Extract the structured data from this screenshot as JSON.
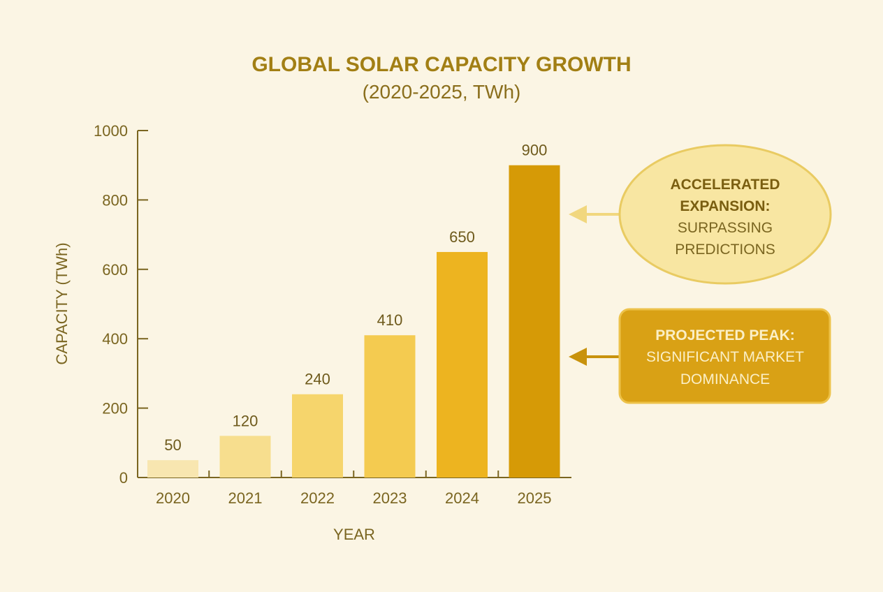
{
  "chart_data": {
    "type": "bar",
    "title": "GLOBAL SOLAR CAPACITY GROWTH",
    "subtitle": "(2020-2025, TWh)",
    "xlabel": "YEAR",
    "ylabel": "CAPACITY (TWh)",
    "ylim": [
      0,
      1000
    ],
    "yticks": [
      "0",
      "200",
      "400",
      "600",
      "800",
      "1000"
    ],
    "categories": [
      "2020",
      "2021",
      "2022",
      "2023",
      "2024",
      "2025"
    ],
    "values": [
      50,
      120,
      240,
      410,
      650,
      900
    ],
    "data_labels": [
      "50",
      "120",
      "240",
      "410",
      "650",
      "900"
    ],
    "bar_colors": [
      "#F8E6B0",
      "#F7DE8E",
      "#F6D56C",
      "#F4CB50",
      "#EDB420",
      "#D69A06"
    ],
    "grid": false,
    "legend": "none",
    "annotations": [
      {
        "bold": "ACCELERATED",
        "bold2": "EXPANSION:",
        "line1": "SURPASSING",
        "line2": "PREDICTIONS",
        "shape": "ellipse",
        "fill": "#F8E6A2",
        "stroke": "#E9CB62",
        "points_to": 800
      },
      {
        "bold": "PROJECTED PEAK:",
        "line1": "SIGNIFICANT MARKET",
        "line2": "DOMINANCE",
        "shape": "rounded-box",
        "fill": "#D9A115",
        "stroke": "#EDC24A",
        "points_to": 400
      }
    ]
  }
}
